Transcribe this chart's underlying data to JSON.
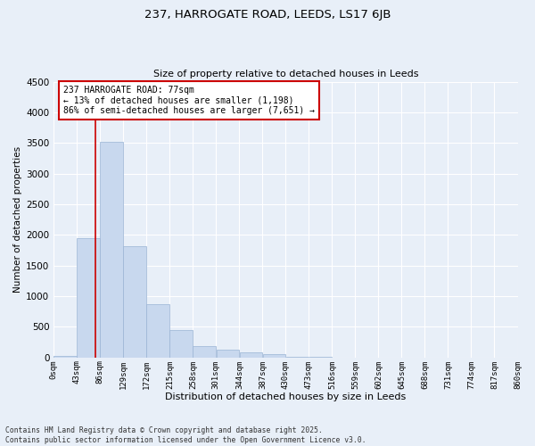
{
  "title": "237, HARROGATE ROAD, LEEDS, LS17 6JB",
  "subtitle": "Size of property relative to detached houses in Leeds",
  "xlabel": "Distribution of detached houses by size in Leeds",
  "ylabel": "Number of detached properties",
  "bar_color": "#c8d8ee",
  "bar_edge_color": "#9ab4d4",
  "background_color": "#e8eff8",
  "fig_background_color": "#e8eff8",
  "grid_color": "#ffffff",
  "property_line_color": "#cc0000",
  "property_size": 77,
  "annotation_text_line1": "237 HARROGATE ROAD: 77sqm",
  "annotation_text_line2": "← 13% of detached houses are smaller (1,198)",
  "annotation_text_line3": "86% of semi-detached houses are larger (7,651) →",
  "annotation_box_color": "#ffffff",
  "annotation_box_edge_color": "#cc0000",
  "footer_text": "Contains HM Land Registry data © Crown copyright and database right 2025.\nContains public sector information licensed under the Open Government Licence v3.0.",
  "bin_labels": [
    "0sqm",
    "43sqm",
    "86sqm",
    "129sqm",
    "172sqm",
    "215sqm",
    "258sqm",
    "301sqm",
    "344sqm",
    "387sqm",
    "430sqm",
    "473sqm",
    "516sqm",
    "559sqm",
    "602sqm",
    "645sqm",
    "688sqm",
    "731sqm",
    "774sqm",
    "817sqm",
    "860sqm"
  ],
  "bin_edges": [
    0,
    43,
    86,
    129,
    172,
    215,
    258,
    301,
    344,
    387,
    430,
    473,
    516,
    559,
    602,
    645,
    688,
    731,
    774,
    817,
    860
  ],
  "bar_heights": [
    30,
    1950,
    3520,
    1820,
    870,
    450,
    185,
    135,
    90,
    50,
    10,
    5,
    2,
    2,
    1,
    0,
    0,
    0,
    0,
    0
  ],
  "ylim": [
    0,
    4500
  ],
  "yticks": [
    0,
    500,
    1000,
    1500,
    2000,
    2500,
    3000,
    3500,
    4000,
    4500
  ]
}
